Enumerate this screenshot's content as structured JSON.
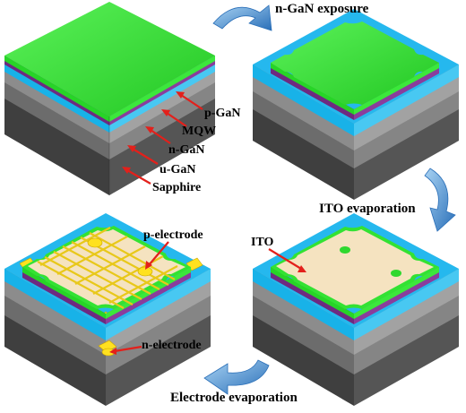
{
  "labels": {
    "step_n_gan": "n-GaN exposure",
    "step_ito": "ITO evaporation",
    "step_electrode": "Electrode evaporation",
    "layer_p_gan": "p-GaN",
    "layer_mqw": "MQW",
    "layer_n_gan": "n-GaN",
    "layer_u_gan": "u-GaN",
    "layer_sapphire": "Sapphire",
    "ito": "ITO",
    "p_electrode": "p-electrode",
    "n_electrode": "n-electrode"
  },
  "colors": {
    "p_gan": "#33e233",
    "mqw": "#7a2a86",
    "n_gan": "#19b4ea",
    "u_gan": "#7a7a7a",
    "sapphire": "#4a4a4a",
    "ito": "#f5e3c0",
    "electrode": "#ffe11f",
    "pointer": "#e3201b",
    "process_arrow": "#3f86c9"
  }
}
